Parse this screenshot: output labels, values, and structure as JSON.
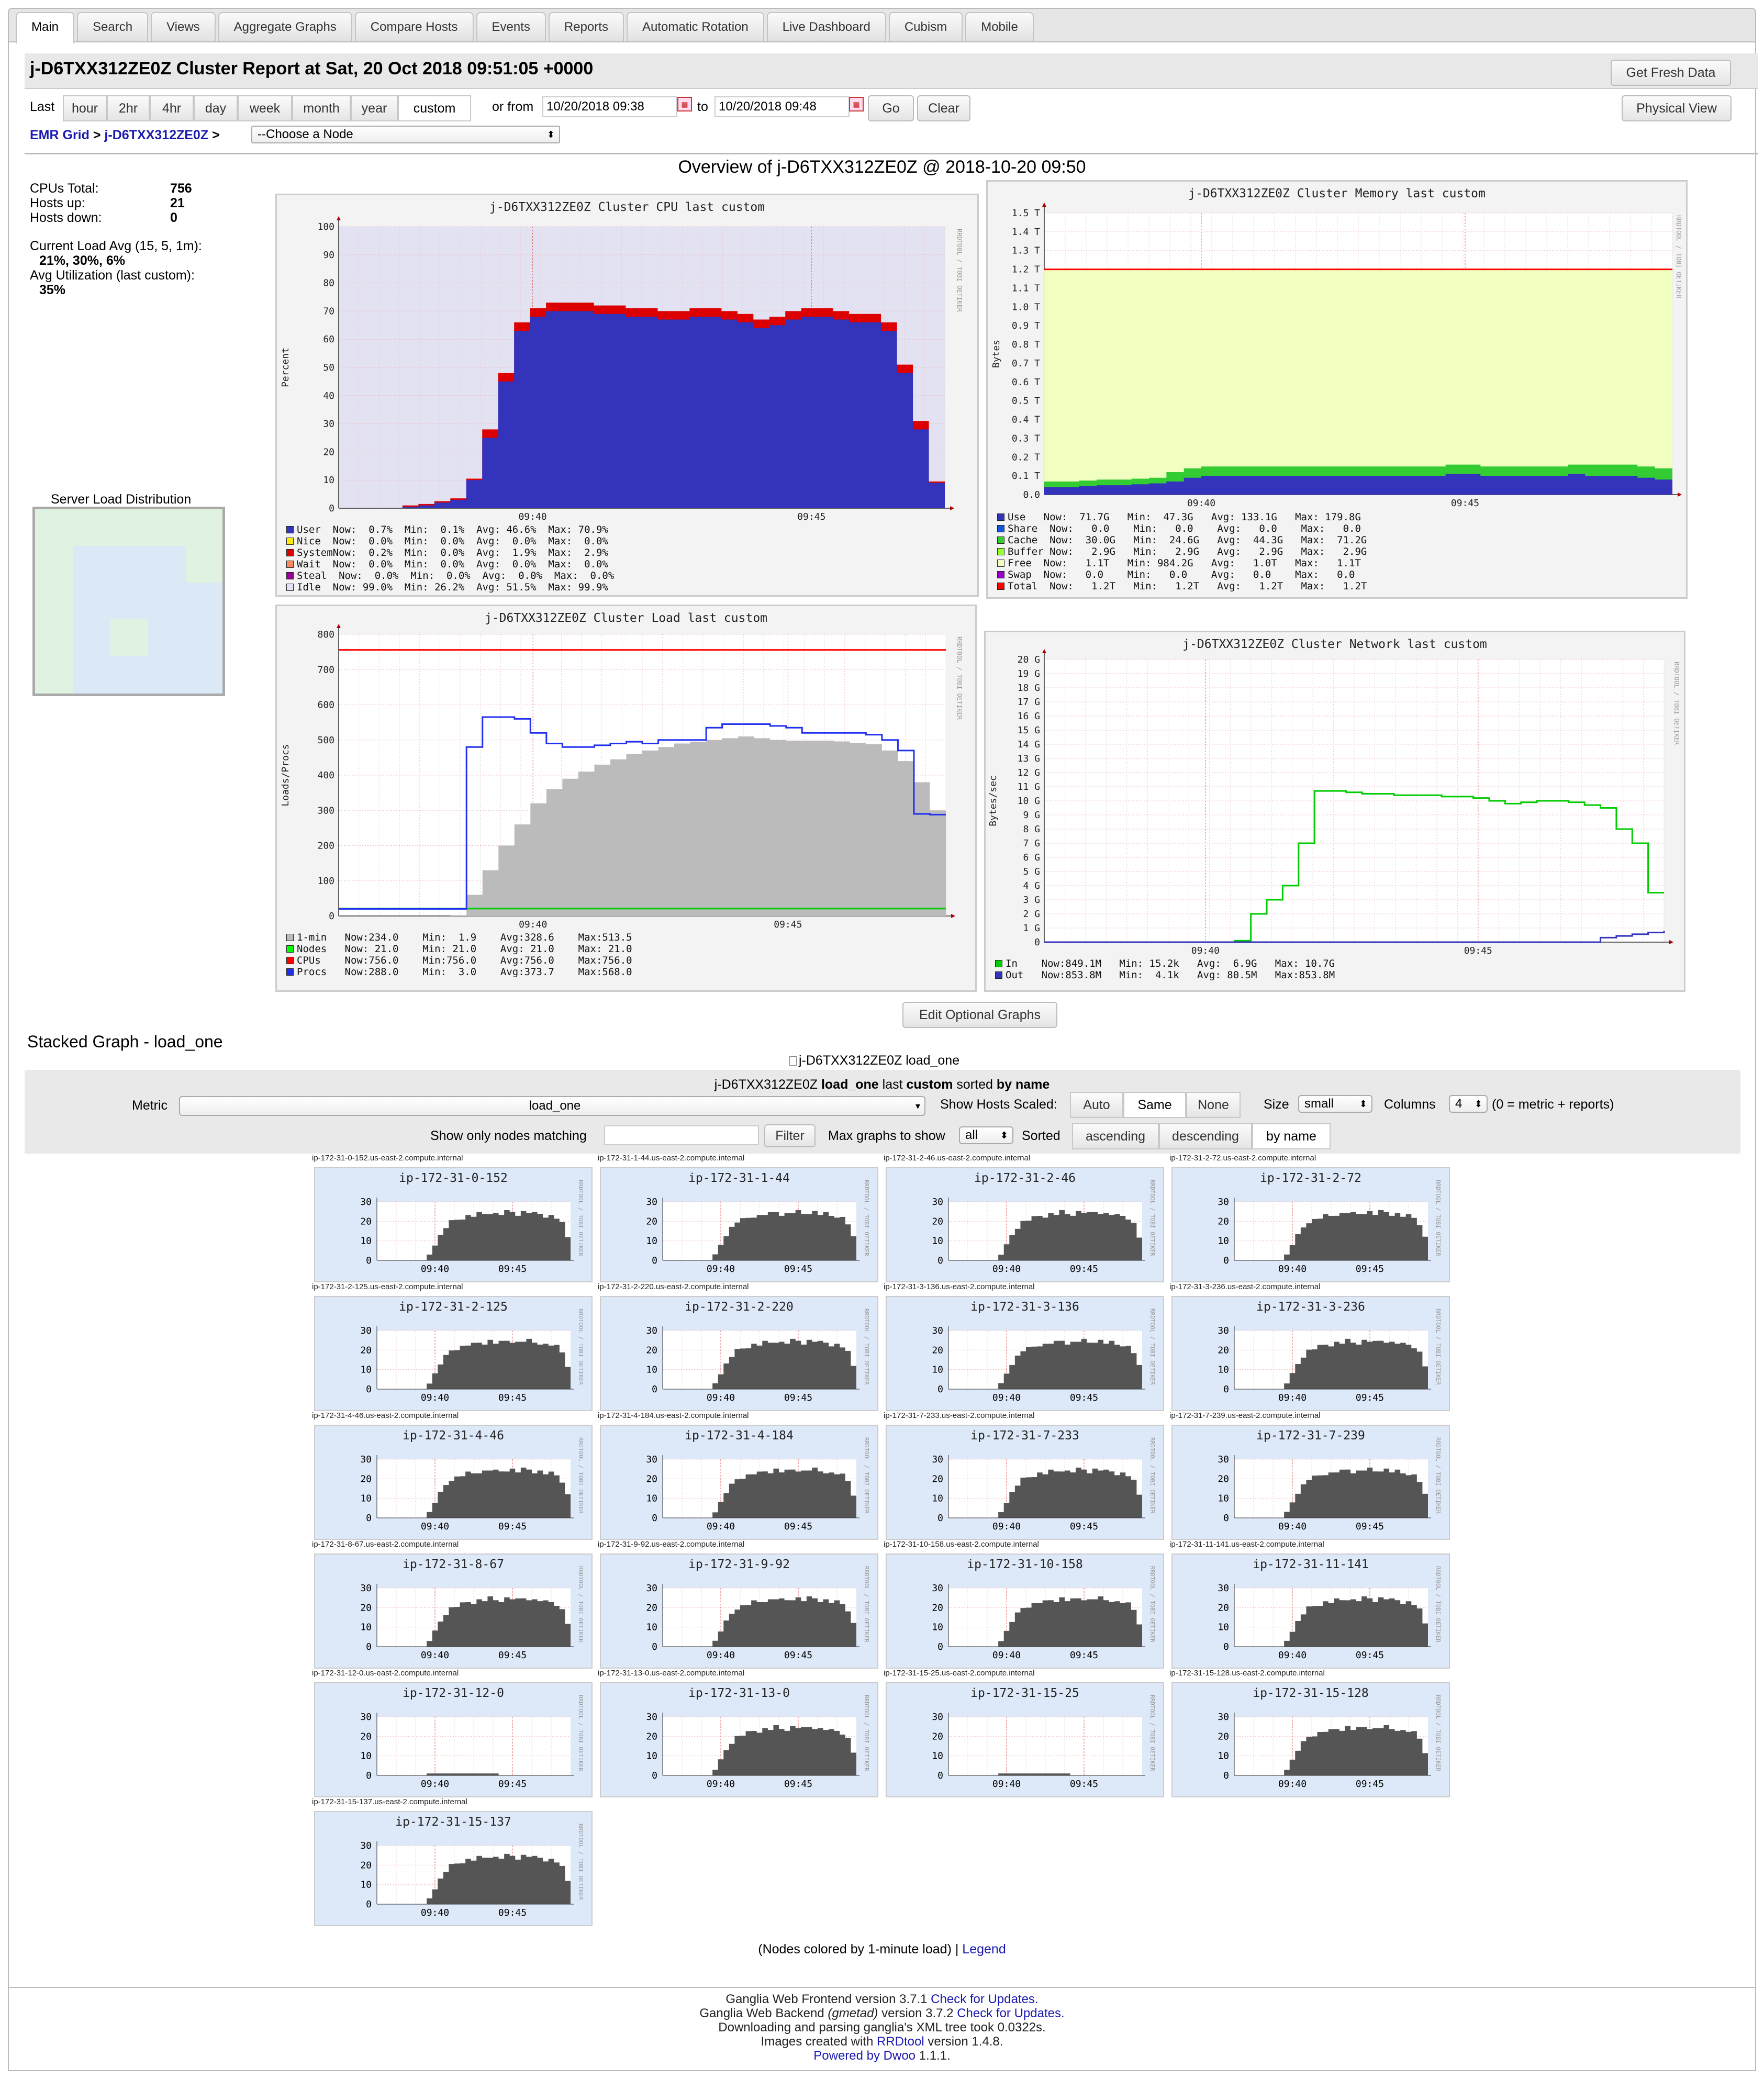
{
  "tabs": [
    "Main",
    "Search",
    "Views",
    "Aggregate Graphs",
    "Compare Hosts",
    "Events",
    "Reports",
    "Automatic Rotation",
    "Live Dashboard",
    "Cubism",
    "Mobile"
  ],
  "header": {
    "title": "j-D6TXX312ZE0Z Cluster Report at Sat, 20 Oct 2018 09:51:05 +0000",
    "fresh_button": "Get Fresh Data",
    "physical_button": "Physical View"
  },
  "range": {
    "last_label": "Last",
    "options": [
      "hour",
      "2hr",
      "4hr",
      "day",
      "week",
      "month",
      "year",
      "custom"
    ],
    "selected": "custom",
    "from_label": "or from",
    "from_value": "10/20/2018 09:38",
    "to_label": "to",
    "to_value": "10/20/2018 09:48",
    "go": "Go",
    "clear": "Clear"
  },
  "breadcrumb": {
    "grid": "EMR Grid",
    "sep1": ">",
    "cluster": "j-D6TXX312ZE0Z",
    "sep2": ">",
    "node_select": "--Choose a Node"
  },
  "overview": {
    "title": "Overview of j-D6TXX312ZE0Z @ 2018-10-20 09:50",
    "cpus_label": "CPUs Total:",
    "cpus": "756",
    "hosts_up_label": "Hosts up:",
    "hosts_up": "21",
    "hosts_down_label": "Hosts down:",
    "hosts_down": "0",
    "load_label": "Current Load Avg (15, 5, 1m):",
    "load": "21%, 30%, 6%",
    "util_label": "Avg Utilization (last custom):",
    "util": "35%",
    "sld_label": "Server Load Distribution"
  },
  "graphs": {
    "cpu": {
      "title": "j-D6TXX312ZE0Z Cluster CPU last custom",
      "ylabel": "Percent",
      "yticks": [
        "100",
        "90",
        "80",
        "70",
        "60",
        "50",
        "40",
        "30",
        "20",
        "10",
        "0"
      ],
      "xticks": [
        "09:40",
        "09:45"
      ],
      "legend": [
        {
          "name": "User",
          "text": "User  Now:  0.7%  Min:  0.1%  Avg: 46.6%  Max: 70.9%",
          "color": "#3333bb"
        },
        {
          "name": "Nice",
          "text": "Nice  Now:  0.0%  Min:  0.0%  Avg:  0.0%  Max:  0.0%",
          "color": "#ffea00"
        },
        {
          "name": "System",
          "text": "SystemNow:  0.2%  Min:  0.0%  Avg:  1.9%  Max:  2.9%",
          "color": "#dd0000"
        },
        {
          "name": "Wait",
          "text": "Wait  Now:  0.0%  Min:  0.0%  Avg:  0.0%  Max:  0.0%",
          "color": "#ff8a60"
        },
        {
          "name": "Steal",
          "text": "Steal  Now:  0.0%  Min:  0.0%  Avg:  0.0%  Max:  0.0%",
          "color": "#990099"
        },
        {
          "name": "Idle",
          "text": "Idle  Now: 99.0%  Min: 26.2%  Avg: 51.5%  Max: 99.9%",
          "color": "#e2e2f2"
        }
      ]
    },
    "memory": {
      "title": "j-D6TXX312ZE0Z Cluster Memory last custom",
      "ylabel": "Bytes",
      "yticks": [
        "1.5 T",
        "1.4 T",
        "1.3 T",
        "1.2 T",
        "1.1 T",
        "1.0 T",
        "0.9 T",
        "0.8 T",
        "0.7 T",
        "0.6 T",
        "0.5 T",
        "0.4 T",
        "0.3 T",
        "0.2 T",
        "0.1 T",
        "0.0"
      ],
      "xticks": [
        "09:40",
        "09:45"
      ],
      "legend": [
        {
          "name": "Use",
          "text": "Use   Now:  71.7G   Min:  47.3G   Avg: 133.1G   Max: 179.8G",
          "color": "#3333bb"
        },
        {
          "name": "Share",
          "text": "Share  Now:   0.0    Min:   0.0    Avg:   0.0    Max:   0.0",
          "color": "#1555dd"
        },
        {
          "name": "Cache",
          "text": "Cache  Now:  30.0G   Min:  24.6G   Avg:  44.3G   Max:  71.2G",
          "color": "#33cc33"
        },
        {
          "name": "Buffer",
          "text": "Buffer Now:   2.9G   Min:   2.9G   Avg:   2.9G   Max:   2.9G",
          "color": "#99ff33"
        },
        {
          "name": "Free",
          "text": "Free  Now:   1.1T   Min: 984.2G   Avg:   1.0T   Max:   1.1T",
          "color": "#f0ffc0"
        },
        {
          "name": "Swap",
          "text": "Swap  Now:   0.0    Min:   0.0    Avg:   0.0    Max:   0.0",
          "color": "#9900cc"
        },
        {
          "name": "Total",
          "text": "Total  Now:   1.2T   Min:   1.2T   Avg:   1.2T   Max:   1.2T",
          "color": "#ff0000"
        }
      ]
    },
    "load": {
      "title": "j-D6TXX312ZE0Z Cluster Load last custom",
      "ylabel": "Loads/Procs",
      "yticks": [
        "800",
        "700",
        "600",
        "500",
        "400",
        "300",
        "200",
        "100",
        "0"
      ],
      "xticks": [
        "09:40",
        "09:45"
      ],
      "legend": [
        {
          "name": "1-min",
          "text": "1-min   Now:234.0    Min:  1.9    Avg:328.6    Max:513.5",
          "color": "#bbbbbb"
        },
        {
          "name": "Nodes",
          "text": "Nodes   Now: 21.0    Min: 21.0    Avg: 21.0    Max: 21.0",
          "color": "#00ff00"
        },
        {
          "name": "CPUs",
          "text": "CPUs    Now:756.0    Min:756.0    Avg:756.0    Max:756.0",
          "color": "#ff0000"
        },
        {
          "name": "Procs",
          "text": "Procs   Now:288.0    Min:  3.0    Avg:373.7    Max:568.0",
          "color": "#2030f0"
        }
      ]
    },
    "network": {
      "title": "j-D6TXX312ZE0Z Cluster Network last custom",
      "ylabel": "Bytes/sec",
      "yticks": [
        "20 G",
        "19 G",
        "18 G",
        "17 G",
        "16 G",
        "15 G",
        "14 G",
        "13 G",
        "12 G",
        "11 G",
        "10 G",
        "9 G",
        "8 G",
        "7 G",
        "6 G",
        "5 G",
        "4 G",
        "3 G",
        "2 G",
        "1 G",
        "0"
      ],
      "xticks": [
        "09:40",
        "09:45"
      ],
      "legend": [
        {
          "name": "In",
          "text": "In    Now:849.1M   Min: 15.2k   Avg:  6.9G   Max: 10.7G",
          "color": "#00cc00"
        },
        {
          "name": "Out",
          "text": "Out   Now:853.8M   Min:  4.1k   Avg: 80.5M   Max:853.8M",
          "color": "#3333bb"
        }
      ]
    }
  },
  "rrdtool_tag": "RRDTOOL / TOBI OETIKER",
  "edit_graphs": "Edit Optional Graphs",
  "stacked": {
    "heading": "Stacked Graph - load_one",
    "img_alt": "j-D6TXX312ZE0Z load_one",
    "caption_pre": "j-D6TXX312ZE0Z",
    "caption_metric": "load_one",
    "caption_mid": "last",
    "caption_range": "custom",
    "caption_sorted": "sorted",
    "caption_by": "by name"
  },
  "controls": {
    "metric_label": "Metric",
    "metric_value": "load_one",
    "scaled_label": "Show Hosts Scaled:",
    "scaled_options": [
      "Auto",
      "Same",
      "None"
    ],
    "scaled_selected": "Same",
    "size_label": "Size",
    "size_value": "small",
    "columns_label": "Columns",
    "columns_value": "4",
    "columns_note": "(0 = metric + reports)",
    "match_label": "Show only nodes matching",
    "match_value": "",
    "filter_button": "Filter",
    "max_label": "Max graphs to show",
    "max_value": "all",
    "sorted_label": "Sorted",
    "sort_options": [
      "ascending",
      "descending",
      "by name"
    ],
    "sort_selected": "by name"
  },
  "hosts": [
    {
      "fqdn": "ip-172-31-0-152.us-east-2.compute.internal",
      "name": "ip-172-31-0-152"
    },
    {
      "fqdn": "ip-172-31-1-44.us-east-2.compute.internal",
      "name": "ip-172-31-1-44"
    },
    {
      "fqdn": "ip-172-31-2-46.us-east-2.compute.internal",
      "name": "ip-172-31-2-46"
    },
    {
      "fqdn": "ip-172-31-2-72.us-east-2.compute.internal",
      "name": "ip-172-31-2-72"
    },
    {
      "fqdn": "ip-172-31-2-125.us-east-2.compute.internal",
      "name": "ip-172-31-2-125"
    },
    {
      "fqdn": "ip-172-31-2-220.us-east-2.compute.internal",
      "name": "ip-172-31-2-220"
    },
    {
      "fqdn": "ip-172-31-3-136.us-east-2.compute.internal",
      "name": "ip-172-31-3-136"
    },
    {
      "fqdn": "ip-172-31-3-236.us-east-2.compute.internal",
      "name": "ip-172-31-3-236"
    },
    {
      "fqdn": "ip-172-31-4-46.us-east-2.compute.internal",
      "name": "ip-172-31-4-46"
    },
    {
      "fqdn": "ip-172-31-4-184.us-east-2.compute.internal",
      "name": "ip-172-31-4-184"
    },
    {
      "fqdn": "ip-172-31-7-233.us-east-2.compute.internal",
      "name": "ip-172-31-7-233"
    },
    {
      "fqdn": "ip-172-31-7-239.us-east-2.compute.internal",
      "name": "ip-172-31-7-239"
    },
    {
      "fqdn": "ip-172-31-8-67.us-east-2.compute.internal",
      "name": "ip-172-31-8-67"
    },
    {
      "fqdn": "ip-172-31-9-92.us-east-2.compute.internal",
      "name": "ip-172-31-9-92"
    },
    {
      "fqdn": "ip-172-31-10-158.us-east-2.compute.internal",
      "name": "ip-172-31-10-158"
    },
    {
      "fqdn": "ip-172-31-11-141.us-east-2.compute.internal",
      "name": "ip-172-31-11-141"
    },
    {
      "fqdn": "ip-172-31-12-0.us-east-2.compute.internal",
      "name": "ip-172-31-12-0"
    },
    {
      "fqdn": "ip-172-31-13-0.us-east-2.compute.internal",
      "name": "ip-172-31-13-0"
    },
    {
      "fqdn": "ip-172-31-15-25.us-east-2.compute.internal",
      "name": "ip-172-31-15-25"
    },
    {
      "fqdn": "ip-172-31-15-128.us-east-2.compute.internal",
      "name": "ip-172-31-15-128"
    },
    {
      "fqdn": "ip-172-31-15-137.us-east-2.compute.internal",
      "name": "ip-172-31-15-137"
    }
  ],
  "mini_yticks": [
    "30",
    "20",
    "10",
    "0"
  ],
  "mini_xticks": [
    "09:40",
    "09:45"
  ],
  "legend_note": {
    "text": "(Nodes colored by 1-minute load) |",
    "link": "Legend"
  },
  "footer": {
    "l1": "Ganglia Web Frontend version 3.7.1",
    "l1_link": "Check for Updates.",
    "l2a": "Ganglia Web Backend",
    "l2b": "(gmetad)",
    "l2c": "version 3.7.2",
    "l2_link": "Check for Updates.",
    "l3": "Downloading and parsing ganglia's XML tree took 0.0322s.",
    "l4a": "Images created with",
    "l4_link": "RRDtool",
    "l4b": "version 1.4.8.",
    "l5_link": "Powered by Dwoo",
    "l5b": "1.1.1."
  },
  "colors": {
    "tab_bg": "#e6e6e6",
    "link": "#1a1ab0",
    "graph_bg": "#f3f3f3",
    "mini_bg": "#dde8f8",
    "idle": "#e2e2f2"
  }
}
